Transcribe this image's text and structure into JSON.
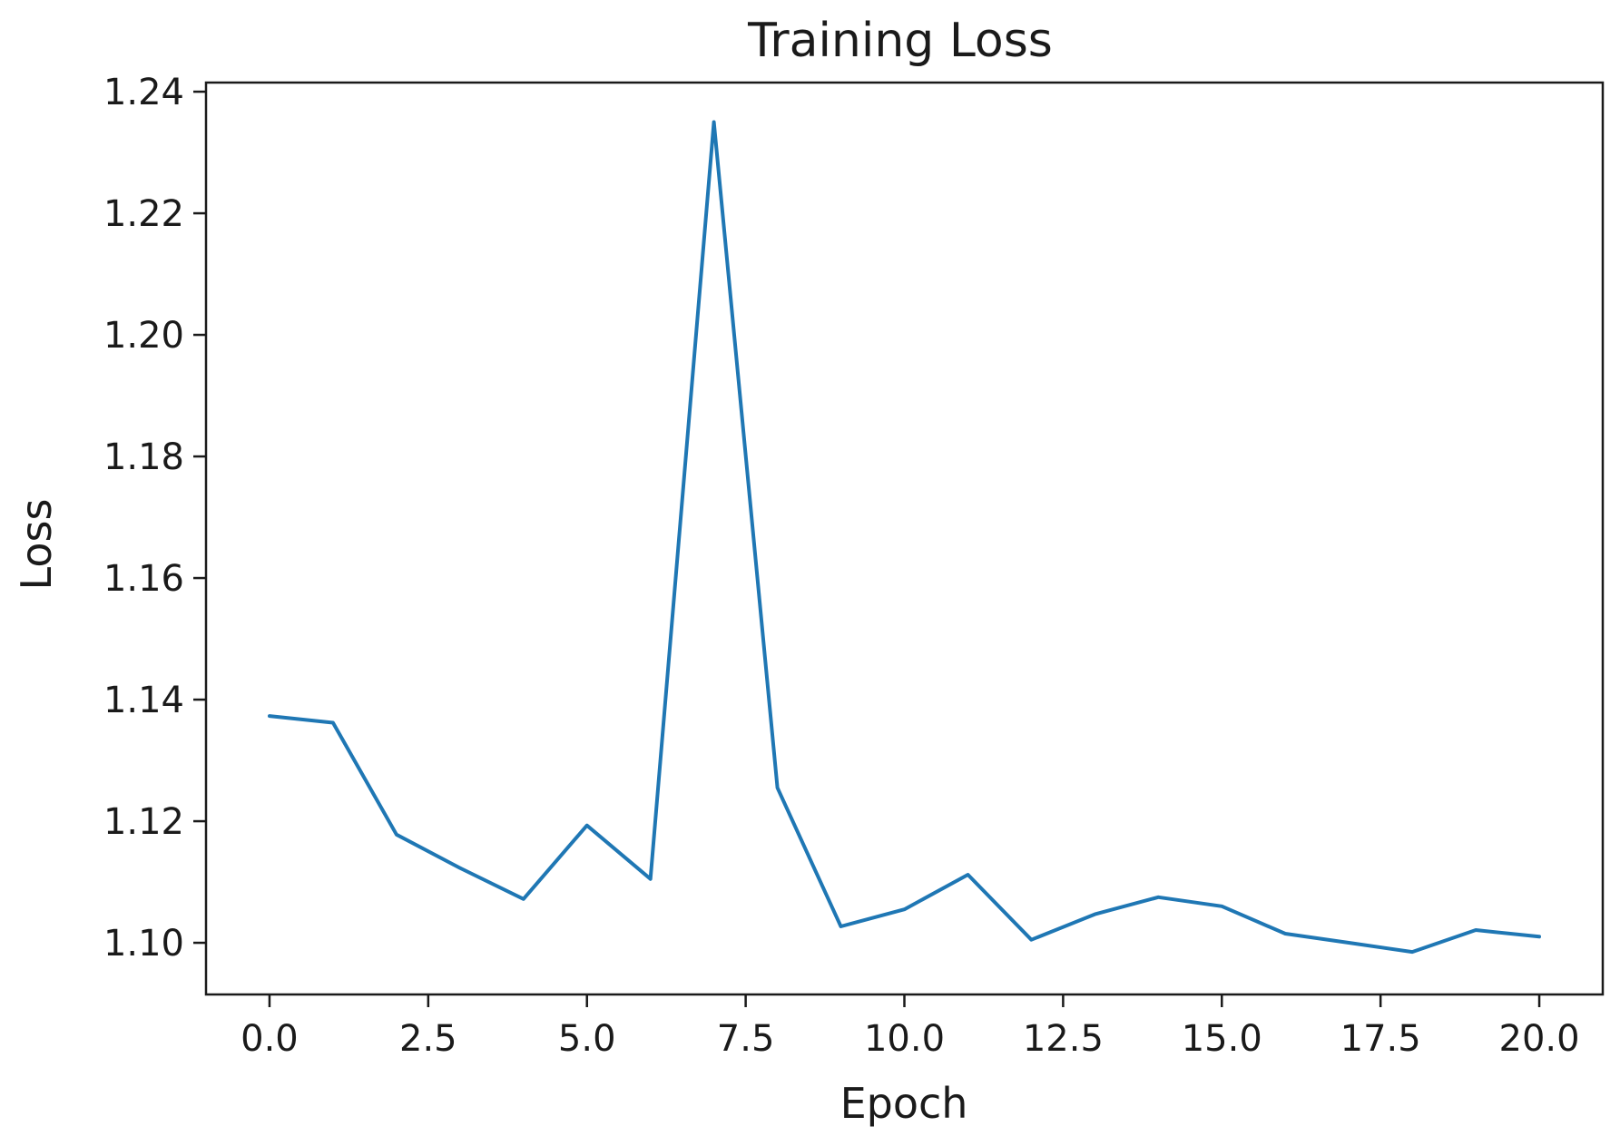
{
  "chart_data": {
    "type": "line",
    "title": "Training Loss",
    "xlabel": "Epoch",
    "ylabel": "Loss",
    "xlim": [
      -1.0,
      21.0
    ],
    "ylim": [
      1.0915,
      1.2415
    ],
    "xticks": [
      0.0,
      2.5,
      5.0,
      7.5,
      10.0,
      12.5,
      15.0,
      17.5,
      20.0
    ],
    "xtick_labels": [
      "0.0",
      "2.5",
      "5.0",
      "7.5",
      "10.0",
      "12.5",
      "15.0",
      "17.5",
      "20.0"
    ],
    "yticks": [
      1.1,
      1.12,
      1.14,
      1.16,
      1.18,
      1.2,
      1.22,
      1.24
    ],
    "ytick_labels": [
      "1.10",
      "1.12",
      "1.14",
      "1.16",
      "1.18",
      "1.20",
      "1.22",
      "1.24"
    ],
    "grid": false,
    "series": [
      {
        "color": "#1f77b4",
        "x": [
          0,
          1,
          2,
          3,
          4,
          5,
          6,
          7,
          8,
          9,
          10,
          11,
          12,
          13,
          14,
          15,
          16,
          17,
          18,
          19,
          20
        ],
        "y": [
          1.1373,
          1.1362,
          1.1178,
          1.1123,
          1.1072,
          1.1193,
          1.1105,
          1.235,
          1.1255,
          1.1027,
          1.1055,
          1.1112,
          1.1005,
          1.1047,
          1.1075,
          1.106,
          1.1015,
          1.1,
          1.0985,
          1.1021,
          1.101
        ]
      }
    ]
  }
}
